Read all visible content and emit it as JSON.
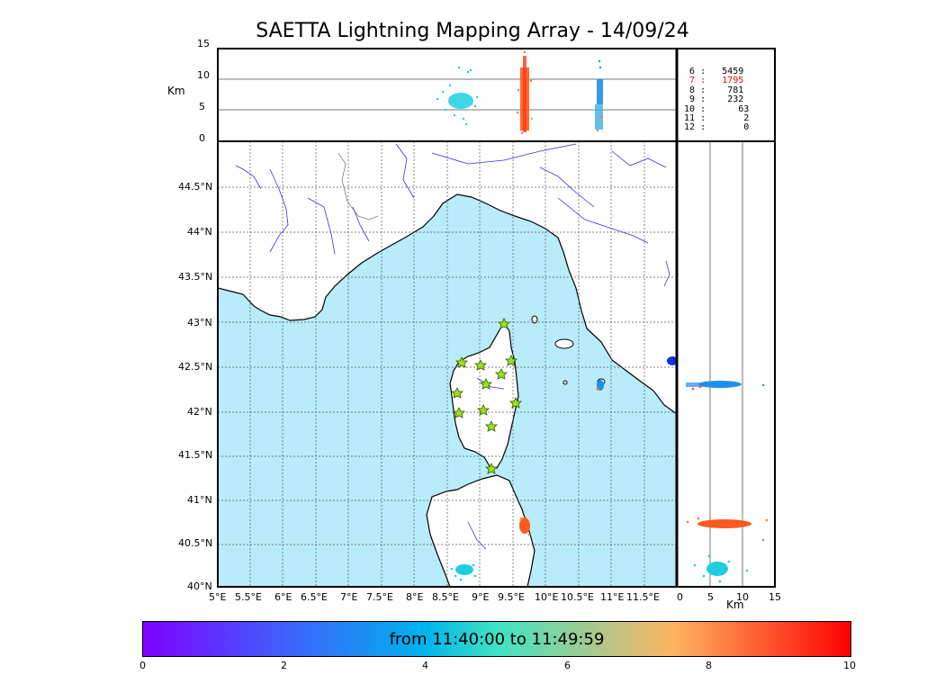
{
  "title": "SAETTA Lightning Mapping Array - 14/09/24",
  "alt_axis": {
    "unit": "Km",
    "ticks": [
      "15",
      "10",
      "5",
      "0"
    ]
  },
  "map": {
    "lon_ticks": [
      "5°E",
      "5.5°E",
      "6°E",
      "6.5°E",
      "7°E",
      "7.5°E",
      "8°E",
      "8.5°E",
      "9°E",
      "9.5°E",
      "10°E",
      "10.5°E",
      "11°E",
      "11.5°E"
    ],
    "lat_ticks": [
      "44.5°N",
      "44°N",
      "43.5°N",
      "43°N",
      "42.5°N",
      "42°N",
      "41.5°N",
      "41°N",
      "40.5°N",
      "40°N"
    ],
    "sea_color": "#b8ecfb",
    "land_color": "#ffffff",
    "river_color": "#3333dd",
    "station_marker": "star-icon",
    "station_color": "#9be21a"
  },
  "side_axis": {
    "unit": "Km",
    "ticks": [
      "0",
      "5",
      "10",
      "15"
    ]
  },
  "station_counts": [
    {
      "stations": "6",
      "sep": ":",
      "count": "5459",
      "color": "#000000"
    },
    {
      "stations": "7",
      "sep": ":",
      "count": "1795",
      "color": "#ff0000"
    },
    {
      "stations": "8",
      "sep": ":",
      "count": "781",
      "color": "#000000"
    },
    {
      "stations": "9",
      "sep": ":",
      "count": "232",
      "color": "#000000"
    },
    {
      "stations": "10",
      "sep": ":",
      "count": "63",
      "color": "#000000"
    },
    {
      "stations": "11",
      "sep": ":",
      "count": "2",
      "color": "#000000"
    },
    {
      "stations": "12",
      "sep": ":",
      "count": "0",
      "color": "#000000"
    }
  ],
  "colorbar": {
    "label": "from 11:40:00 to 11:49:59",
    "ticks": [
      "0",
      "2",
      "4",
      "6",
      "8",
      "10"
    ],
    "colormap": "rainbow"
  }
}
